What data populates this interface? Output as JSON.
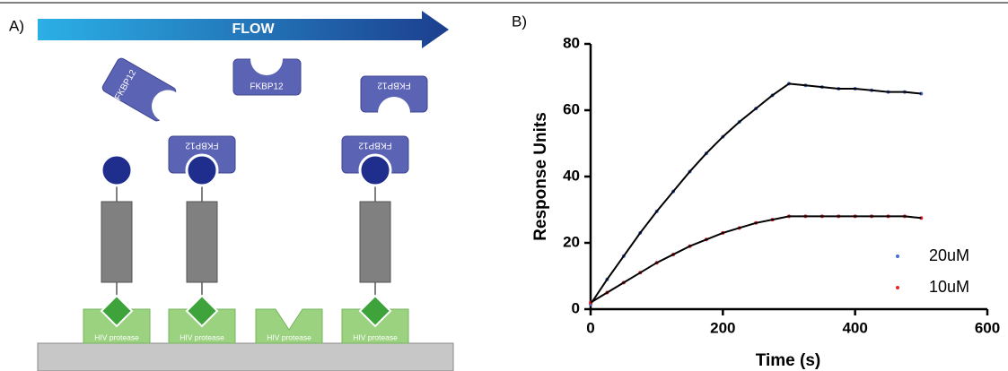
{
  "panel_a": {
    "label": "A)",
    "flow": "FLOW",
    "fkbp_labels": [
      "FKBP12",
      "FKBP12",
      "FKBP12",
      "FKBP12",
      "FKBP12"
    ],
    "protease_labels": [
      "HIV protease",
      "HIV protease",
      "HIV protease",
      "HIV protease"
    ]
  },
  "chart_data": {
    "type": "scatter",
    "panel_label": "B)",
    "x_label": "Time (s)",
    "y_label": "Response Units",
    "x": [
      0,
      25,
      50,
      75,
      100,
      125,
      150,
      175,
      200,
      225,
      250,
      275,
      300,
      325,
      350,
      375,
      400,
      425,
      450,
      475,
      500
    ],
    "series": [
      {
        "name": "20uM",
        "color": "#4a6fd0",
        "values": [
          1.5,
          9,
          16,
          23,
          29.5,
          35.5,
          41.5,
          47,
          52,
          56.5,
          60.5,
          64.5,
          68,
          67.5,
          67,
          66.5,
          66.5,
          66,
          65.5,
          65.5,
          65
        ]
      },
      {
        "name": "10uM",
        "color": "#e8262b",
        "values": [
          2,
          5,
          8,
          11,
          14,
          16.5,
          19,
          21,
          23,
          24.5,
          26,
          27,
          28,
          28,
          28,
          28,
          28,
          28,
          28,
          28,
          27.5
        ]
      }
    ],
    "fit_color": "#000000",
    "xlim": [
      0,
      600
    ],
    "xticks": [
      0,
      200,
      400,
      600
    ],
    "ylim": [
      0,
      80
    ],
    "yticks": [
      0,
      20,
      40,
      60,
      80
    ]
  }
}
